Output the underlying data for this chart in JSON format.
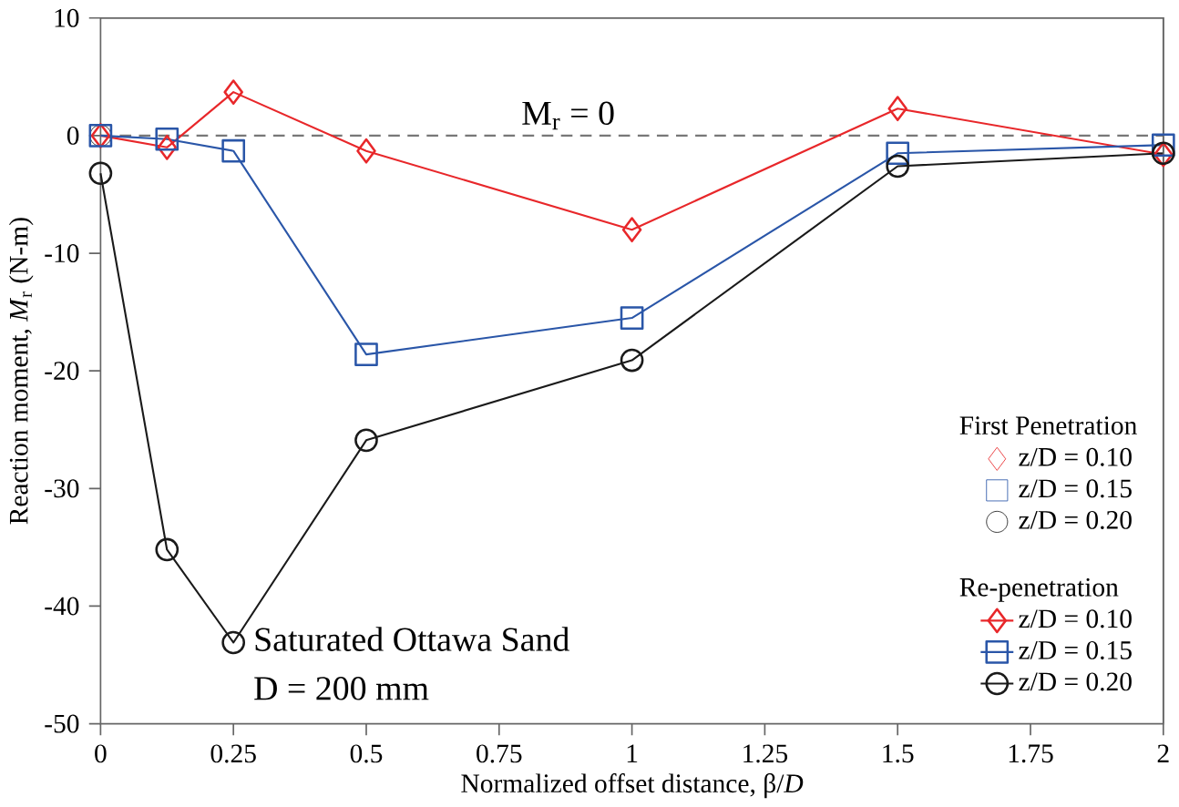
{
  "chart_data": {
    "type": "line",
    "xlabel": "Normalized offset distance, β/*D*",
    "ylabel": "Reaction moment, *M*$_{r}$ (N-m)",
    "xlim": [
      0,
      2
    ],
    "xticks": [
      0,
      0.25,
      0.5,
      0.75,
      1,
      1.25,
      1.5,
      1.75,
      2
    ],
    "ylim": [
      -50,
      10
    ],
    "yticks": [
      -50,
      -40,
      -30,
      -20,
      -10,
      0,
      10
    ],
    "grid": false,
    "legend": "bottom right",
    "line_style": "solid",
    "ref_lines": [
      {
        "axis": "y",
        "value": 0,
        "label": "M$_{r}$ = 0",
        "color": "#777777",
        "line_style": "dashed"
      }
    ],
    "annotations": [
      "Saturated Ottawa Sand",
      "D = 200 mm",
      "First Penetration",
      "Re-penetration"
    ],
    "series": [
      {
        "name": "z/D = 0.10",
        "type": "scatter",
        "marker": "diamond",
        "color": "#e8272a",
        "x": [
          0
        ],
        "values": [
          0
        ]
      },
      {
        "name": "z/D = 0.15",
        "type": "scatter",
        "marker": "square",
        "color": "#2a56a8",
        "x": [
          0
        ],
        "values": [
          0
        ]
      },
      {
        "name": "z/D = 0.20",
        "type": "scatter",
        "marker": "circle",
        "color": "#1a1a1a",
        "x": [
          0
        ],
        "values": [
          0
        ]
      },
      {
        "name": "z/D = 0.10",
        "type": "line",
        "marker": "diamond",
        "color": "#e8272a",
        "x": [
          0,
          0.125,
          0.25,
          0.5,
          1,
          1.5,
          2
        ],
        "values": [
          0,
          -1.0,
          3.7,
          -1.3,
          -8.0,
          2.3,
          -1.6
        ]
      },
      {
        "name": "z/D = 0.15",
        "type": "line",
        "marker": "square",
        "color": "#2a56a8",
        "x": [
          0,
          0.125,
          0.25,
          0.5,
          1,
          1.5,
          2
        ],
        "values": [
          0,
          -0.3,
          -1.3,
          -18.6,
          -15.5,
          -1.5,
          -0.8
        ]
      },
      {
        "name": "z/D = 0.20",
        "type": "line",
        "marker": "circle",
        "color": "#1a1a1a",
        "x": [
          0,
          0.125,
          0.25,
          0.5,
          1,
          1.5,
          2
        ],
        "values": [
          -3.2,
          -35.2,
          -43.1,
          -25.9,
          -19.1,
          -2.6,
          -1.5
        ]
      }
    ]
  }
}
